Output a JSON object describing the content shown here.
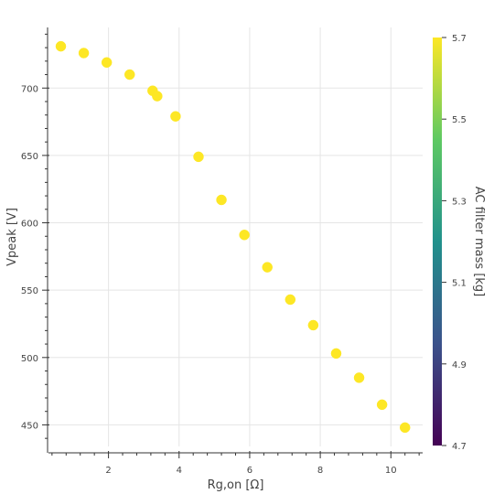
{
  "chart_data": {
    "type": "scatter",
    "xlabel": "Rg,on [Ω]",
    "ylabel": "Vpeak [V]",
    "xlim": [
      0.3,
      10.9
    ],
    "ylim": [
      434,
      745
    ],
    "xticks": [
      2,
      4,
      6,
      8,
      10
    ],
    "yticks": [
      450,
      500,
      550,
      600,
      650,
      700
    ],
    "grid": true,
    "x": [
      0.65,
      1.3,
      1.95,
      2.6,
      3.25,
      3.38,
      3.9,
      4.55,
      5.2,
      5.85,
      6.5,
      7.15,
      7.8,
      8.45,
      9.1,
      9.75,
      10.4
    ],
    "y": [
      731,
      726,
      719,
      710,
      698,
      694,
      679,
      649,
      617,
      591,
      567,
      543,
      524,
      503,
      485,
      465,
      448
    ],
    "marker_color": "#fde725",
    "colorbar": {
      "label": "AC filter mass [kg]",
      "min": 4.7,
      "max": 5.7,
      "ticks": [
        "4.7",
        "4.9",
        "5.1",
        "5.3",
        "5.5",
        "5.7"
      ],
      "colors": [
        "#440154",
        "#3b528b",
        "#21918c",
        "#5ec962",
        "#fde725"
      ]
    }
  }
}
